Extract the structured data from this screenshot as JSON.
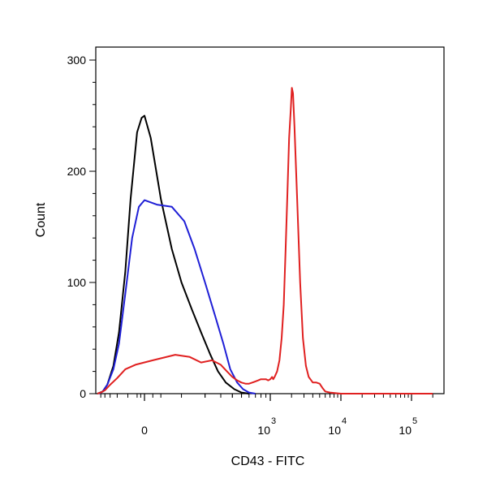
{
  "chart_data": {
    "type": "line",
    "xlabel": "CD43 - FITC",
    "ylabel": "Count",
    "x_scale": "biexponential",
    "y_ticks": [
      {
        "value": 0,
        "label": "0"
      },
      {
        "value": 100,
        "label": "100"
      },
      {
        "value": 200,
        "label": "200"
      },
      {
        "value": 300,
        "label": "300"
      }
    ],
    "x_ticks": [
      {
        "value": 0,
        "base": "0",
        "exp": ""
      },
      {
        "value": 1000,
        "base": "10",
        "exp": "3"
      },
      {
        "value": 10000,
        "base": "10",
        "exp": "4"
      },
      {
        "value": 100000,
        "base": "10",
        "exp": "5"
      }
    ],
    "ylim": [
      0,
      312
    ],
    "grid": false,
    "series": [
      {
        "color": "#000000",
        "points": [
          [
            -600,
            0
          ],
          [
            -450,
            2
          ],
          [
            -350,
            8
          ],
          [
            -250,
            25
          ],
          [
            -180,
            55
          ],
          [
            -120,
            110
          ],
          [
            -80,
            175
          ],
          [
            -40,
            235
          ],
          [
            -15,
            248
          ],
          [
            0,
            250
          ],
          [
            15,
            230
          ],
          [
            40,
            175
          ],
          [
            70,
            130
          ],
          [
            100,
            100
          ],
          [
            140,
            75
          ],
          [
            180,
            55
          ],
          [
            230,
            35
          ],
          [
            280,
            20
          ],
          [
            340,
            10
          ],
          [
            420,
            4
          ],
          [
            500,
            1
          ],
          [
            600,
            0
          ]
        ]
      },
      {
        "color": "#1f1fd6",
        "points": [
          [
            -550,
            0
          ],
          [
            -450,
            2
          ],
          [
            -350,
            8
          ],
          [
            -250,
            22
          ],
          [
            -180,
            45
          ],
          [
            -120,
            90
          ],
          [
            -70,
            140
          ],
          [
            -30,
            168
          ],
          [
            0,
            174
          ],
          [
            30,
            170
          ],
          [
            70,
            168
          ],
          [
            110,
            155
          ],
          [
            150,
            130
          ],
          [
            200,
            100
          ],
          [
            260,
            70
          ],
          [
            320,
            45
          ],
          [
            380,
            22
          ],
          [
            450,
            10
          ],
          [
            520,
            4
          ],
          [
            600,
            1
          ],
          [
            700,
            0
          ]
        ]
      },
      {
        "color": "#e02020",
        "points": [
          [
            -600,
            0
          ],
          [
            -500,
            1
          ],
          [
            -400,
            3
          ],
          [
            -300,
            8
          ],
          [
            -200,
            14
          ],
          [
            -120,
            22
          ],
          [
            -50,
            26
          ],
          [
            20,
            30
          ],
          [
            80,
            35
          ],
          [
            130,
            33
          ],
          [
            180,
            28
          ],
          [
            240,
            30
          ],
          [
            300,
            26
          ],
          [
            350,
            20
          ],
          [
            400,
            15
          ],
          [
            450,
            12
          ],
          [
            500,
            10
          ],
          [
            550,
            9
          ],
          [
            600,
            9
          ],
          [
            650,
            10
          ],
          [
            700,
            11
          ],
          [
            750,
            12
          ],
          [
            800,
            13
          ],
          [
            850,
            13
          ],
          [
            900,
            13
          ],
          [
            950,
            12
          ],
          [
            1000,
            13
          ],
          [
            1060,
            15
          ],
          [
            1100,
            13
          ],
          [
            1150,
            15
          ],
          [
            1250,
            20
          ],
          [
            1350,
            30
          ],
          [
            1450,
            50
          ],
          [
            1550,
            80
          ],
          [
            1650,
            130
          ],
          [
            1750,
            180
          ],
          [
            1850,
            230
          ],
          [
            1950,
            255
          ],
          [
            2020,
            275
          ],
          [
            2100,
            270
          ],
          [
            2200,
            240
          ],
          [
            2400,
            175
          ],
          [
            2650,
            100
          ],
          [
            2900,
            50
          ],
          [
            3200,
            25
          ],
          [
            3500,
            15
          ],
          [
            4000,
            10
          ],
          [
            4500,
            10
          ],
          [
            5000,
            9
          ],
          [
            5500,
            5
          ],
          [
            6000,
            2
          ],
          [
            7000,
            1
          ],
          [
            10000,
            0
          ],
          [
            20000,
            0
          ],
          [
            100000,
            0
          ],
          [
            200000,
            0
          ]
        ]
      }
    ]
  }
}
